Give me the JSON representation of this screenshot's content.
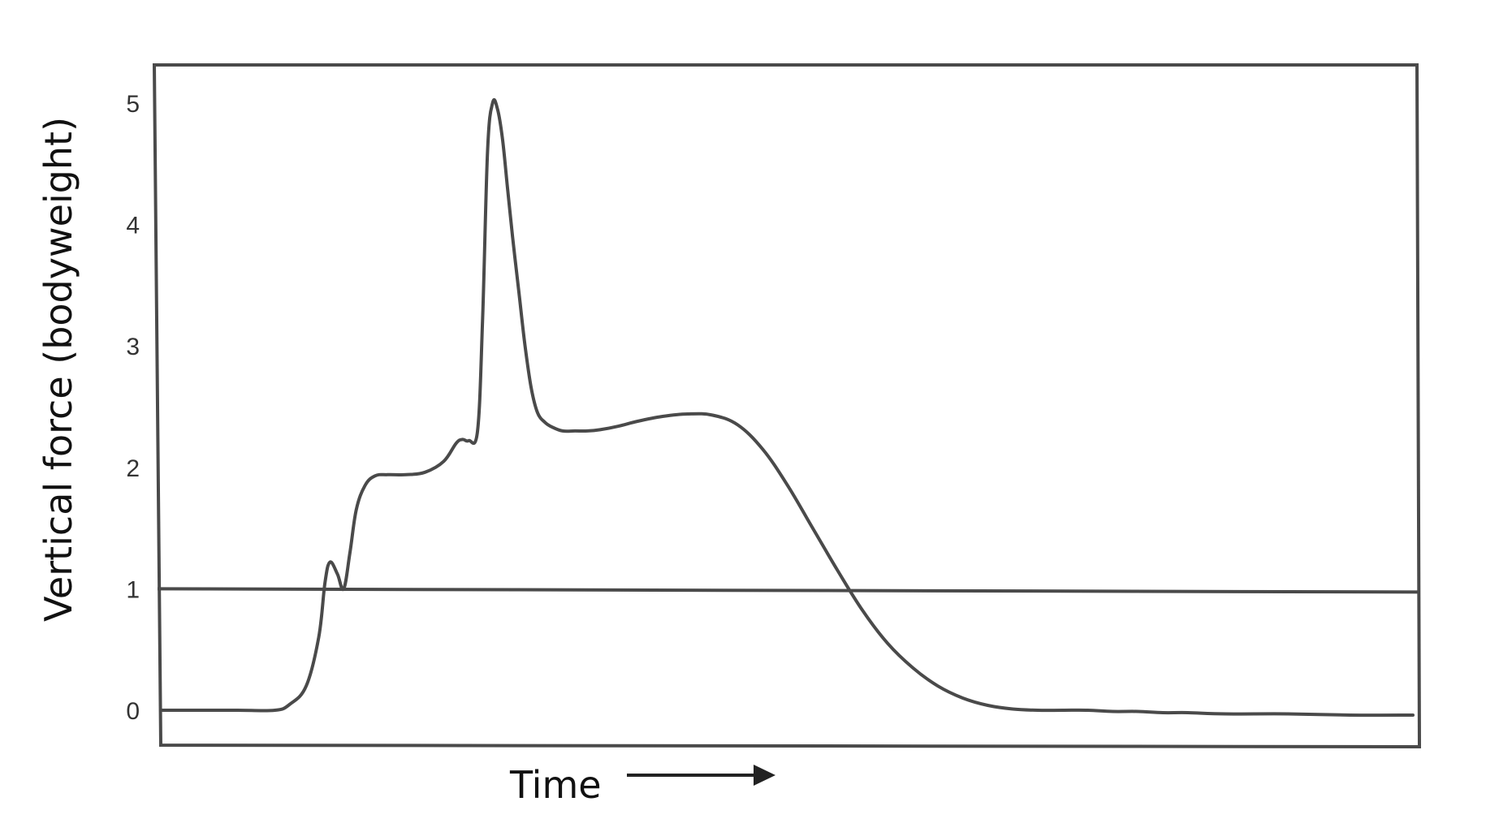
{
  "colors": {
    "background": "#ffffff",
    "frame": "#4a4a4a",
    "curve": "#4a4a4a",
    "text": "#222222"
  },
  "chart_data": {
    "type": "line",
    "title": "",
    "xlabel": "Time",
    "ylabel": "Vertical force (bodyweight)",
    "x_axis_arrow": true,
    "ylim": [
      -0.3,
      5.3
    ],
    "xlim": [
      0,
      100
    ],
    "yticks": [
      "0",
      "1",
      "2",
      "3",
      "4",
      "5"
    ],
    "grid": false,
    "legend": "none",
    "reference_line": {
      "y": 1
    },
    "series": [
      {
        "x": [
          0,
          3,
          6,
          9,
          10.2,
          11.5,
          12.5,
          13.0,
          13.4,
          14.0,
          14.5,
          15.0,
          15.5,
          16.2,
          17.0,
          18.0,
          19.5,
          21.0,
          22.5,
          23.5,
          24.0,
          24.5,
          25.2,
          25.6,
          26.0,
          26.4,
          26.8,
          27.2,
          27.6,
          28.0,
          28.5,
          29.0,
          29.5,
          30.0,
          30.6,
          31.2,
          32,
          33,
          34,
          35,
          36.5,
          38,
          40,
          42,
          44,
          46,
          48,
          50,
          52,
          54,
          56,
          58,
          60,
          62,
          64,
          66,
          68,
          70,
          72,
          74,
          76,
          78,
          80,
          82,
          85,
          90,
          95,
          100
        ],
        "y": [
          0,
          0,
          0,
          0.0,
          0.05,
          0.2,
          0.6,
          1.05,
          1.22,
          1.12,
          1.0,
          1.3,
          1.65,
          1.85,
          1.93,
          1.94,
          1.94,
          1.96,
          2.05,
          2.2,
          2.23,
          2.22,
          2.3,
          3.2,
          4.6,
          5.0,
          4.95,
          4.7,
          4.3,
          3.9,
          3.45,
          3.0,
          2.65,
          2.45,
          2.37,
          2.33,
          2.3,
          2.3,
          2.3,
          2.31,
          2.34,
          2.38,
          2.42,
          2.44,
          2.43,
          2.35,
          2.15,
          1.85,
          1.5,
          1.15,
          0.82,
          0.55,
          0.35,
          0.2,
          0.1,
          0.04,
          0.01,
          0.0,
          0.0,
          0.0,
          -0.01,
          -0.01,
          -0.02,
          -0.02,
          -0.03,
          -0.03,
          -0.04,
          -0.04
        ]
      }
    ]
  }
}
